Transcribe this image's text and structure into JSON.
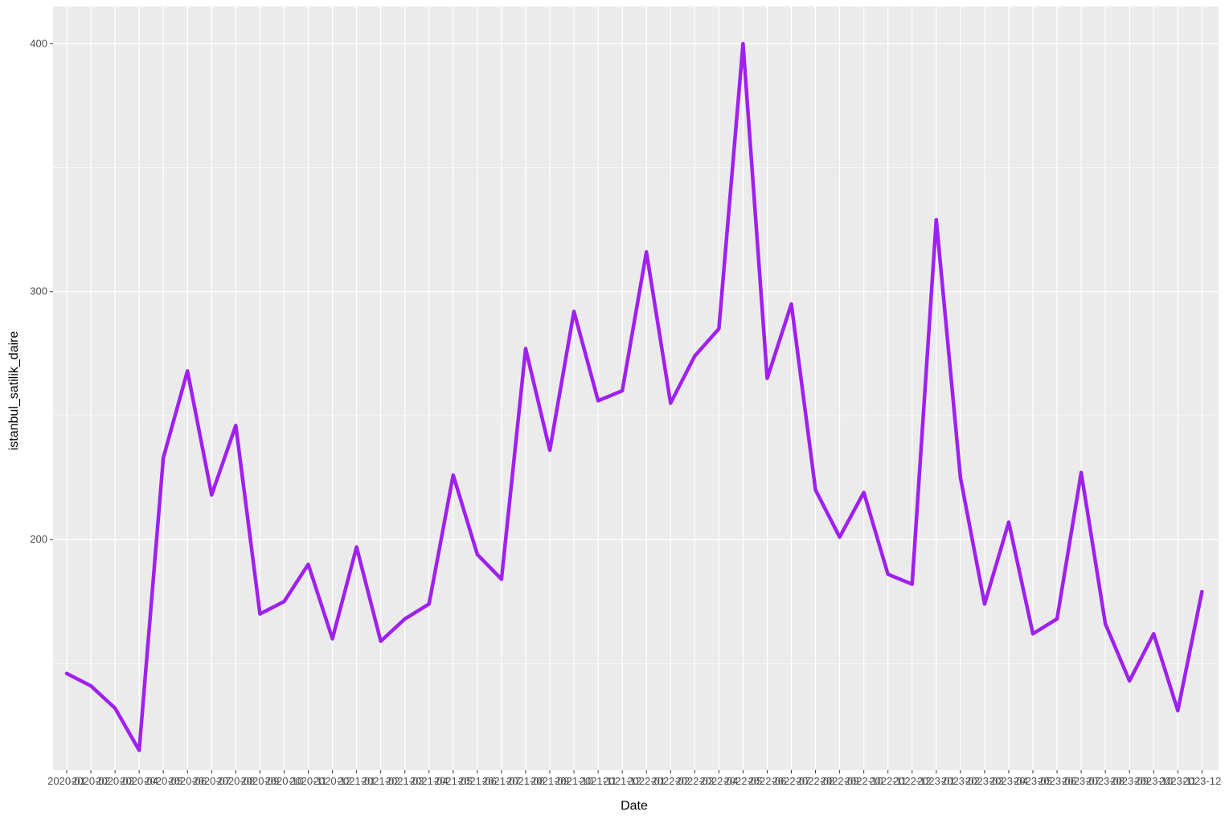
{
  "chart_data": {
    "type": "line",
    "title": "",
    "xlabel": "Date",
    "ylabel": "istanbul_satilik_daire",
    "x": [
      "2020-01",
      "2020-02",
      "2020-03",
      "2020-04",
      "2020-05",
      "2020-06",
      "2020-07",
      "2020-08",
      "2020-09",
      "2020-10",
      "2020-11",
      "2020-12",
      "2021-01",
      "2021-02",
      "2021-03",
      "2021-04",
      "2021-05",
      "2021-06",
      "2021-07",
      "2021-08",
      "2021-09",
      "2021-10",
      "2021-11",
      "2021-12",
      "2022-01",
      "2022-02",
      "2022-03",
      "2022-04",
      "2022-05",
      "2022-06",
      "2022-07",
      "2022-08",
      "2022-09",
      "2022-10",
      "2022-11",
      "2022-12",
      "2023-01",
      "2023-02",
      "2023-03",
      "2023-04",
      "2023-05",
      "2023-06",
      "2023-07",
      "2023-08",
      "2023-09",
      "2023-10",
      "2023-11",
      "2023-12"
    ],
    "series": [
      {
        "name": "",
        "color": "#A020F0",
        "values": [
          146,
          141,
          132,
          115,
          233,
          268,
          218,
          246,
          170,
          175,
          190,
          160,
          197,
          159,
          168,
          174,
          226,
          194,
          184,
          277,
          236,
          292,
          256,
          260,
          316,
          255,
          274,
          285,
          400,
          265,
          295,
          220,
          201,
          219,
          186,
          182,
          329,
          225,
          174,
          207,
          162,
          168,
          227,
          166,
          143,
          162,
          131,
          179
        ]
      }
    ],
    "y_ticks": [
      200,
      300,
      400
    ],
    "y_tick_labels": [
      "200",
      "300",
      "400"
    ],
    "ylim": [
      107,
      415
    ],
    "grid": true,
    "legend": "none",
    "colors": {
      "panel_background": "#EBEBEB",
      "grid_major": "#FFFFFF",
      "line": "#A020F0",
      "tick_label": "#4D4D4D",
      "axis_title": "#000000"
    }
  }
}
